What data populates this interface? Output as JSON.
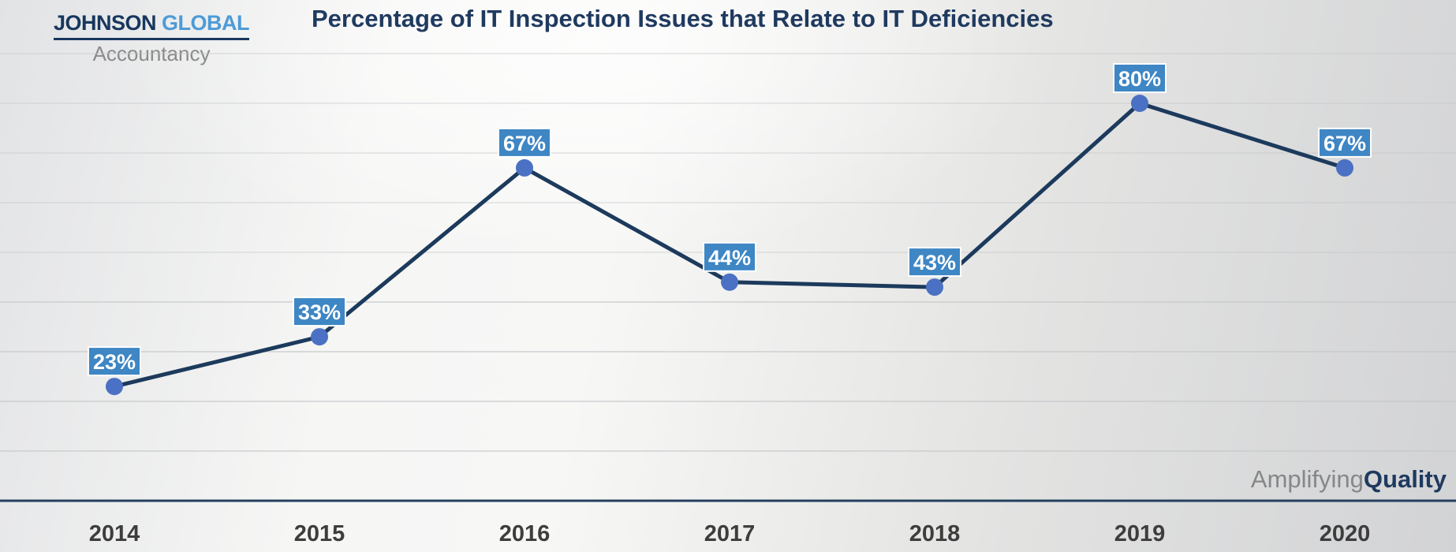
{
  "logo": {
    "line1_primary": "JOHNSON",
    "line1_secondary": "GLOBAL",
    "line2": "Accountancy"
  },
  "header": {
    "title": "Percentage of IT Inspection Issues that Relate to IT Deficiencies"
  },
  "tagline": {
    "part1": "Amplifying",
    "part2": "Quality"
  },
  "chart_data": {
    "type": "line",
    "title": "Percentage of IT Inspection Issues that Relate to IT Deficiencies",
    "categories": [
      "2014",
      "2015",
      "2016",
      "2017",
      "2018",
      "2019",
      "2020"
    ],
    "values": [
      23,
      33,
      67,
      44,
      43,
      80,
      67
    ],
    "point_labels": [
      "23%",
      "33%",
      "67%",
      "44%",
      "43%",
      "80%",
      "67%"
    ],
    "xlabel": "",
    "ylabel": "",
    "ylim": [
      0,
      90
    ],
    "gridline_step": 10,
    "grid": true,
    "legend_position": "none",
    "colors": {
      "line": "#1c3a5c",
      "marker": "#4a71c3",
      "label_bg": "#3e86c4",
      "label_border": "#ffffff",
      "label_text": "#ffffff",
      "gridline": "#c3c5c7",
      "axis_line": "#24405f",
      "axis_text": "#3d3d3d",
      "title_text": "#1f3a5f",
      "logo_primary": "#17375e",
      "logo_secondary": "#4d9bd7",
      "logo_gray": "#8a8a8a",
      "tagline_gray": "#858789"
    }
  }
}
